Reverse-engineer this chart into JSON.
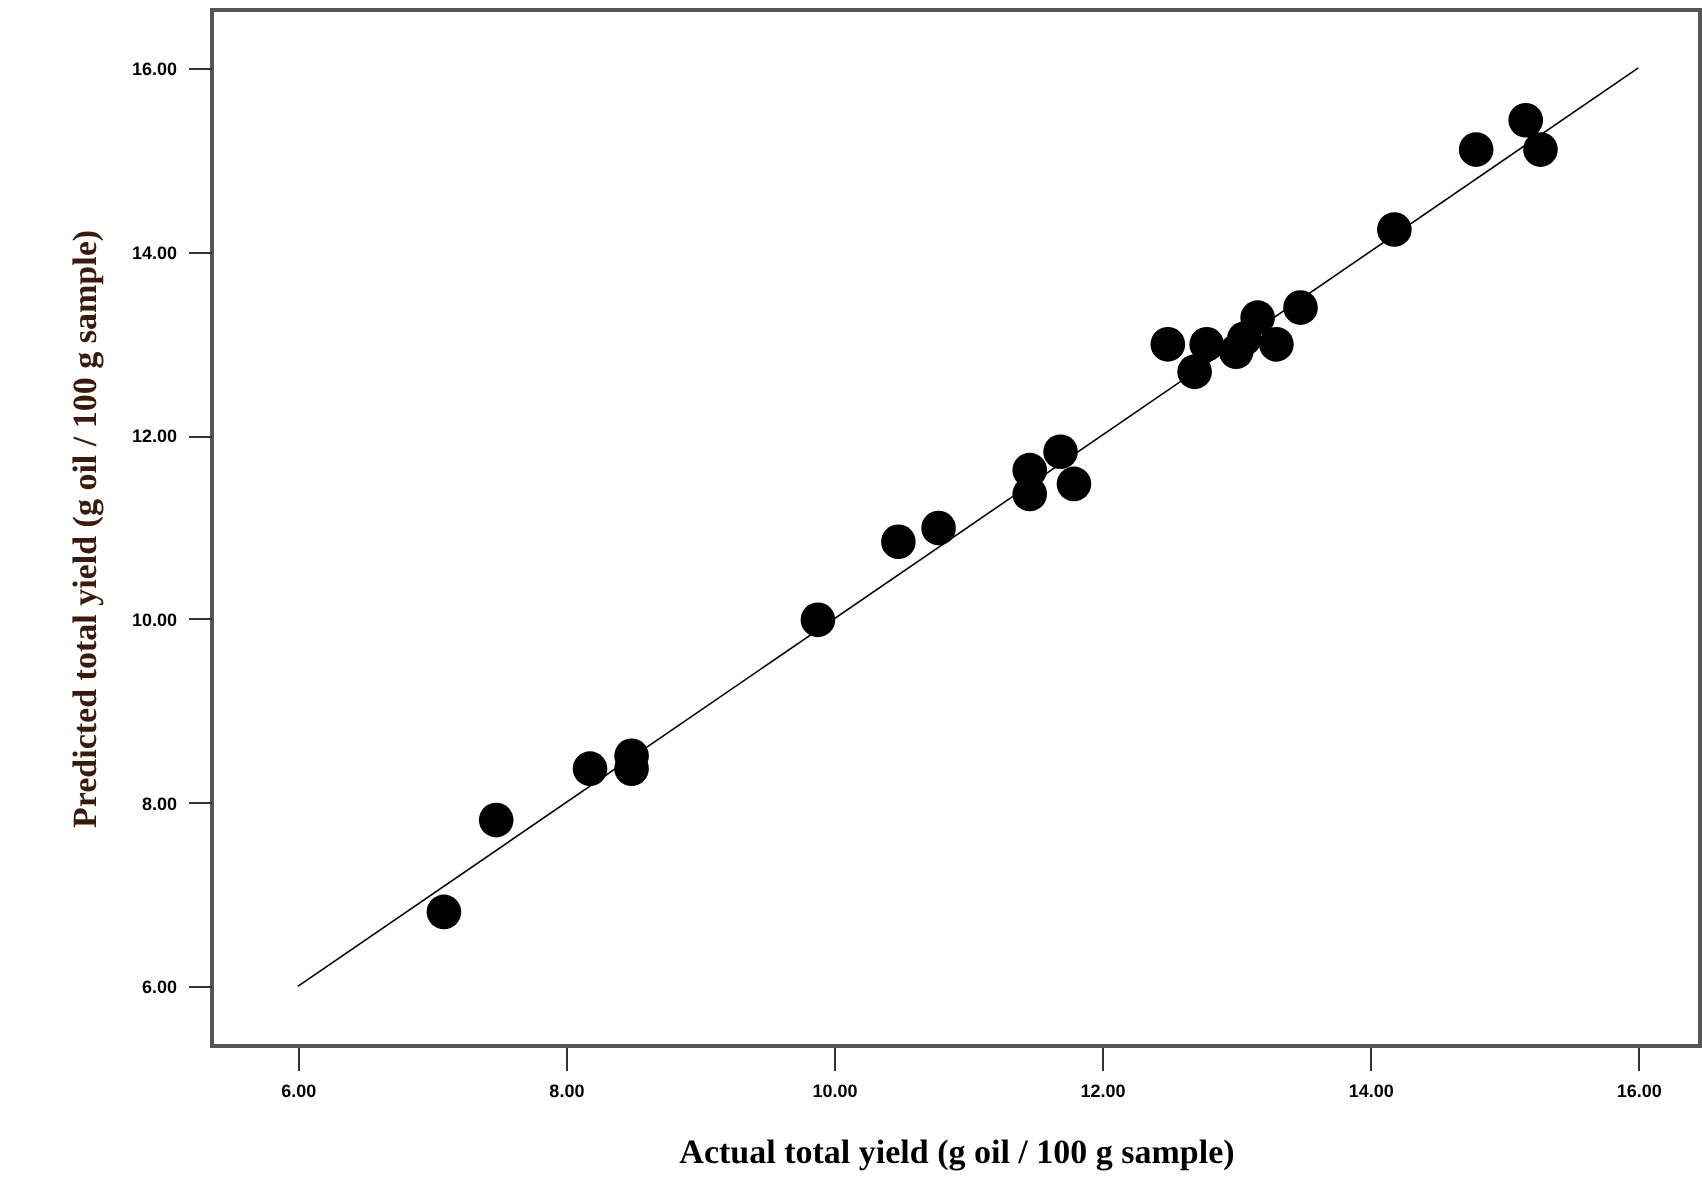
{
  "chart_data": {
    "type": "scatter",
    "xlabel": "Actual total yield (g oil / 100 g sample)",
    "ylabel": "Predicted total yield (g oil / 100 g sample)",
    "xlim": [
      5.36,
      16.46
    ],
    "ylim": [
      5.35,
      16.63
    ],
    "xticks": [
      {
        "value": 6,
        "label": "6.00"
      },
      {
        "value": 8,
        "label": "8.00"
      },
      {
        "value": 10,
        "label": "10.00"
      },
      {
        "value": 12,
        "label": "12.00"
      },
      {
        "value": 14,
        "label": "14.00"
      },
      {
        "value": 16,
        "label": "16.00"
      }
    ],
    "yticks": [
      {
        "value": 6,
        "label": "6.00"
      },
      {
        "value": 8,
        "label": "8.00"
      },
      {
        "value": 10,
        "label": "10.00"
      },
      {
        "value": 12,
        "label": "12.00"
      },
      {
        "value": 14,
        "label": "14.00"
      },
      {
        "value": 16,
        "label": "16.00"
      }
    ],
    "grid": false,
    "marker": "circle",
    "series": [
      {
        "color": "#000000",
        "x": [
          7.09,
          7.48,
          8.18,
          8.49,
          8.49,
          9.88,
          10.48,
          10.78,
          11.46,
          11.46,
          11.69,
          11.79,
          12.49,
          12.69,
          12.78,
          13.0,
          13.06,
          13.16,
          13.3,
          13.48,
          14.18,
          14.79,
          15.16,
          15.27
        ],
        "values": [
          6.81,
          7.81,
          8.37,
          8.37,
          8.51,
          9.99,
          10.84,
          10.99,
          11.62,
          11.36,
          11.82,
          11.47,
          12.99,
          12.69,
          12.99,
          12.91,
          13.05,
          13.28,
          12.99,
          13.39,
          14.24,
          15.11,
          15.43,
          15.11
        ]
      },
      {
        "type": "line",
        "color": "#000000",
        "x": [
          6,
          16
        ],
        "values": [
          6,
          16
        ],
        "line_style": "solid",
        "marker": "none"
      }
    ]
  }
}
